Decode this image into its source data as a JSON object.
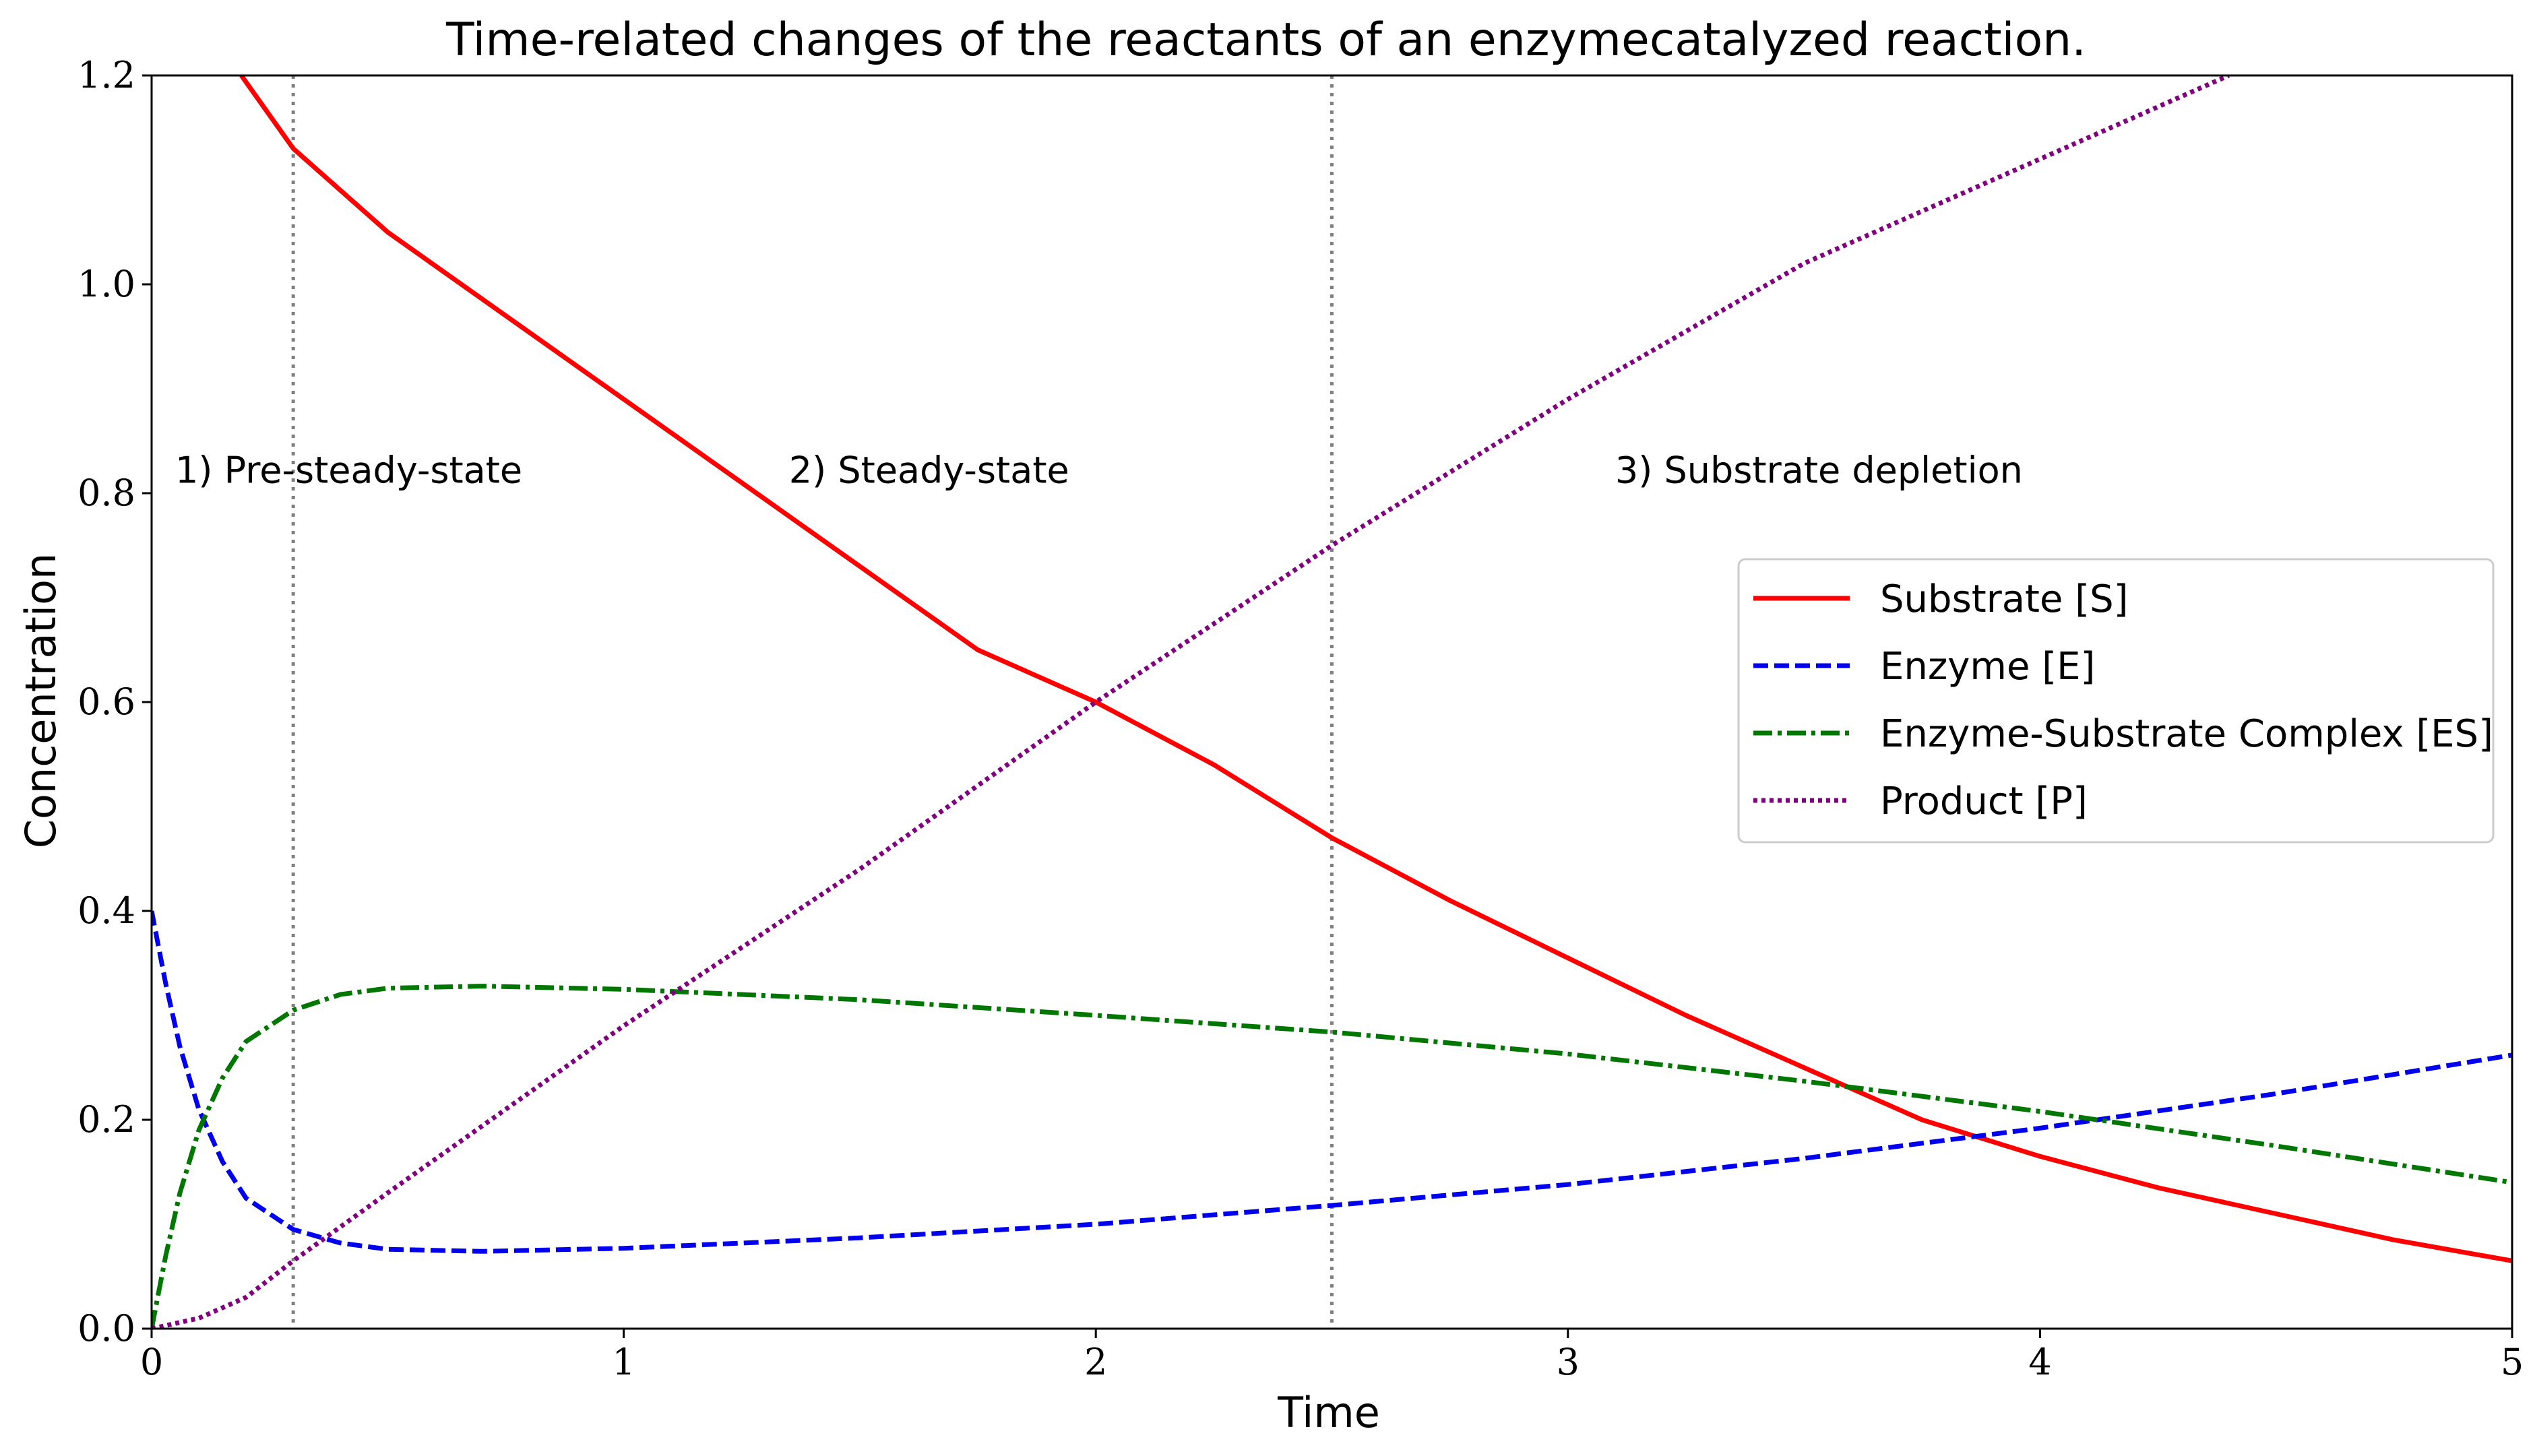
{
  "chart_data": {
    "type": "line",
    "title": "Time-related changes of the reactants of an enzymecatalyzed reaction.",
    "xlabel": "Time",
    "ylabel": "Concentration",
    "xlim": [
      0,
      5
    ],
    "ylim": [
      0,
      1.2
    ],
    "xticks": [
      "0",
      "1",
      "2",
      "3",
      "4",
      "5"
    ],
    "yticks": [
      "0.0",
      "0.2",
      "0.4",
      "0.6",
      "0.8",
      "1.0",
      "1.2"
    ],
    "grid": false,
    "legend_position": "right",
    "vlines": [
      0.3,
      2.5
    ],
    "annotations": [
      {
        "text": "1) Pre-steady-state",
        "x": 0.05,
        "y": 0.81
      },
      {
        "text": "2) Steady-state",
        "x": 1.35,
        "y": 0.81
      },
      {
        "text": "3) Substrate depletion",
        "x": 3.1,
        "y": 0.81
      }
    ],
    "series": [
      {
        "name": "Substrate [S]",
        "color": "#ff0000",
        "style": "solid",
        "x": [
          0.19,
          0.3,
          0.5,
          0.75,
          1.0,
          1.25,
          1.5,
          1.75,
          2.0,
          2.25,
          2.5,
          2.75,
          3.0,
          3.25,
          3.5,
          3.75,
          4.0,
          4.25,
          4.5,
          4.75,
          5.0
        ],
        "y": [
          1.2,
          1.13,
          1.05,
          0.97,
          0.89,
          0.81,
          0.73,
          0.65,
          0.6,
          0.54,
          0.47,
          0.41,
          0.355,
          0.3,
          0.25,
          0.2,
          0.165,
          0.135,
          0.11,
          0.085,
          0.065
        ]
      },
      {
        "name": "Enzyme [E]",
        "color": "#0000ee",
        "style": "dashed",
        "x": [
          0.0,
          0.03,
          0.06,
          0.1,
          0.15,
          0.2,
          0.3,
          0.4,
          0.5,
          0.7,
          1.0,
          1.5,
          2.0,
          2.5,
          3.0,
          3.5,
          4.0,
          4.5,
          5.0
        ],
        "y": [
          0.4,
          0.33,
          0.27,
          0.21,
          0.16,
          0.125,
          0.095,
          0.082,
          0.076,
          0.074,
          0.077,
          0.087,
          0.1,
          0.118,
          0.138,
          0.163,
          0.192,
          0.225,
          0.262
        ]
      },
      {
        "name": "Enzyme-Substrate Complex [ES]",
        "color": "#007700",
        "style": "dashdot",
        "x": [
          0.0,
          0.03,
          0.06,
          0.1,
          0.15,
          0.2,
          0.3,
          0.4,
          0.5,
          0.7,
          1.0,
          1.5,
          2.0,
          2.5,
          3.0,
          3.5,
          4.0,
          4.5,
          5.0
        ],
        "y": [
          0.0,
          0.07,
          0.13,
          0.19,
          0.24,
          0.275,
          0.305,
          0.32,
          0.326,
          0.328,
          0.325,
          0.315,
          0.3,
          0.284,
          0.263,
          0.237,
          0.208,
          0.175,
          0.14
        ]
      },
      {
        "name": "Product [P]",
        "color": "#800080",
        "style": "dotted",
        "x": [
          0.0,
          0.1,
          0.2,
          0.3,
          0.5,
          0.75,
          1.0,
          1.5,
          2.0,
          2.5,
          3.0,
          3.5,
          4.0,
          4.4
        ],
        "y": [
          0.0,
          0.01,
          0.03,
          0.065,
          0.13,
          0.21,
          0.29,
          0.44,
          0.6,
          0.75,
          0.89,
          1.02,
          1.12,
          1.2
        ]
      }
    ]
  }
}
